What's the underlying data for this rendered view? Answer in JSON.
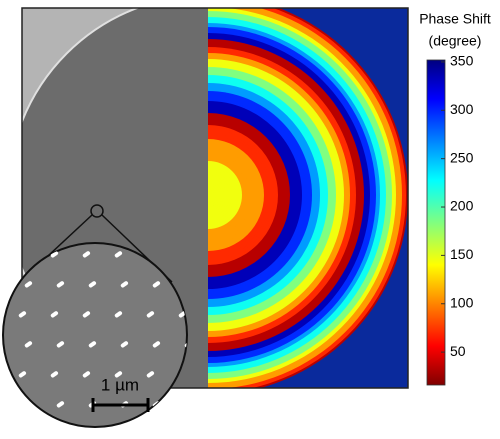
{
  "colorbar": {
    "title": [
      "Phase Shift",
      "(degree)"
    ],
    "range": [
      16,
      352
    ],
    "ticks": [
      50,
      100,
      150,
      200,
      250,
      300,
      350
    ]
  },
  "scale_bar": {
    "label": "1 µm"
  }
}
